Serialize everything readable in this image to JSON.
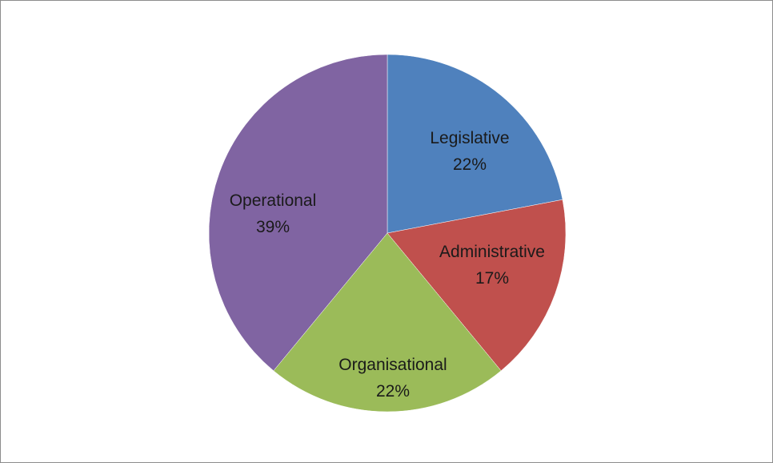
{
  "chart_data": {
    "type": "pie",
    "categories": [
      "Legislative",
      "Administrative",
      "Organisational",
      "Operational"
    ],
    "values": [
      22,
      17,
      22,
      39
    ],
    "value_labels": [
      "22%",
      "17%",
      "22%",
      "39%"
    ],
    "colors": [
      "#4f81bd",
      "#c0504d",
      "#9bbb59",
      "#8064a2"
    ],
    "title": "",
    "legend": "none",
    "start": "12 o'clock",
    "direction": "clockwise"
  }
}
